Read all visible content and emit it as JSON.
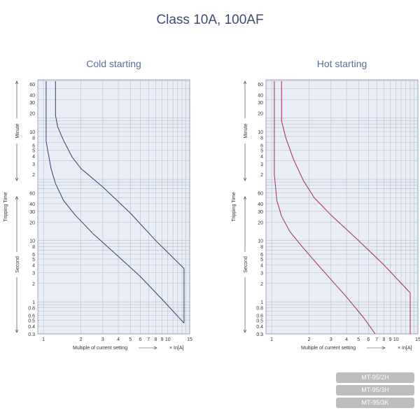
{
  "page": {
    "title": "Class 10A, 100AF"
  },
  "badges": [
    "MT-95/2H",
    "MT-95/3H",
    "MT-95/3K"
  ],
  "chart_data": [
    {
      "type": "line",
      "title": "Cold starting",
      "xlabel": "Multiple of current setting",
      "xunit": "× In[A]",
      "ylabel": "Tripping Time",
      "ylabel_groups": [
        "Minute",
        "Second"
      ],
      "x_scale": "log",
      "y_scale": "log",
      "xlim": [
        0.9,
        15
      ],
      "x_ticks": [
        1,
        2,
        3,
        4,
        5,
        6,
        7,
        8,
        9,
        10,
        15
      ],
      "y_ticks_seconds": [
        "0.3",
        "0.4",
        "0.5",
        "0.6",
        "0.8",
        "1",
        "2",
        "3",
        "4",
        "5",
        "6",
        "8",
        "10",
        "20",
        "30",
        "40",
        "60"
      ],
      "y_ticks_minutes": [
        "2",
        "3",
        "4",
        "5",
        "6",
        "8",
        "10",
        "20",
        "30",
        "40",
        "60"
      ],
      "color": "#33406e",
      "series": [
        {
          "points": [
            [
              1.05,
              4000
            ],
            [
              1.05,
              420
            ],
            [
              1.08,
              300
            ],
            [
              1.15,
              150
            ],
            [
              1.25,
              85
            ],
            [
              1.45,
              45
            ],
            [
              1.8,
              26
            ],
            [
              2.5,
              13
            ],
            [
              4,
              5.5
            ],
            [
              6,
              2.6
            ],
            [
              9,
              1.1
            ],
            [
              13.5,
              0.45
            ]
          ]
        },
        {
          "points": [
            [
              1.25,
              4000
            ],
            [
              1.25,
              1100
            ],
            [
              1.3,
              720
            ],
            [
              1.45,
              430
            ],
            [
              1.7,
              230
            ],
            [
              2,
              150
            ],
            [
              3,
              75
            ],
            [
              5,
              28
            ],
            [
              8,
              10
            ],
            [
              13.5,
              3.5
            ]
          ]
        },
        {
          "points": [
            [
              13.5,
              3.5
            ],
            [
              13.5,
              0.45
            ]
          ]
        }
      ]
    },
    {
      "type": "line",
      "title": "Hot starting",
      "xlabel": "Multiple of current setting",
      "xunit": "× In[A]",
      "ylabel": "Tripping Time",
      "ylabel_groups": [
        "Minute",
        "Second"
      ],
      "x_scale": "log",
      "y_scale": "log",
      "xlim": [
        0.9,
        15
      ],
      "x_ticks": [
        1,
        2,
        3,
        4,
        5,
        6,
        7,
        8,
        9,
        10,
        15
      ],
      "y_ticks_seconds": [
        "0.3",
        "0.4",
        "0.5",
        "0.6",
        "0.8",
        "1",
        "2",
        "3",
        "4",
        "5",
        "6",
        "8",
        "10",
        "20",
        "30",
        "40",
        "60"
      ],
      "y_ticks_minutes": [
        "2",
        "3",
        "4",
        "5",
        "6",
        "8",
        "10",
        "20",
        "30",
        "40",
        "60"
      ],
      "color": "#a8285a",
      "series": [
        {
          "points": [
            [
              1.05,
              4000
            ],
            [
              1.05,
              120
            ],
            [
              1.1,
              45
            ],
            [
              1.2,
              25
            ],
            [
              1.4,
              14
            ],
            [
              1.8,
              7.5
            ],
            [
              2.5,
              3.5
            ],
            [
              4,
              1.2
            ],
            [
              5.5,
              0.55
            ],
            [
              6.8,
              0.3
            ]
          ]
        },
        {
          "points": [
            [
              1.2,
              4000
            ],
            [
              1.2,
              900
            ],
            [
              1.3,
              470
            ],
            [
              1.5,
              210
            ],
            [
              1.8,
              95
            ],
            [
              2.2,
              50
            ],
            [
              3,
              26
            ],
            [
              5,
              10
            ],
            [
              8,
              4
            ],
            [
              13,
              1.4
            ]
          ]
        },
        {
          "points": [
            [
              13,
              1.4
            ],
            [
              13,
              0.3
            ]
          ]
        }
      ]
    }
  ]
}
